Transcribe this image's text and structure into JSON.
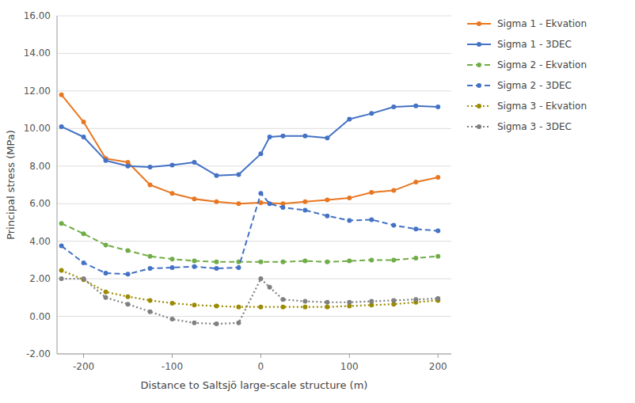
{
  "chart_data": {
    "type": "line",
    "xlabel": "Distance to Saltsjö large-scale structure (m)",
    "ylabel": "Principal stress (MPa)",
    "xlim": [
      -230,
      215
    ],
    "ylim": [
      -2.0,
      16.0
    ],
    "xticks": [
      -200,
      -100,
      0,
      100,
      200
    ],
    "yticks": [
      {
        "value": -2.0,
        "label": "-2.00"
      },
      {
        "value": 0.0,
        "label": "0.00"
      },
      {
        "value": 2.0,
        "label": "2.00"
      },
      {
        "value": 4.0,
        "label": "4.00"
      },
      {
        "value": 6.0,
        "label": "6.00"
      },
      {
        "value": 8.0,
        "label": "8.00"
      },
      {
        "value": 10.0,
        "label": "10.00"
      },
      {
        "value": 12.0,
        "label": "12.00"
      },
      {
        "value": 14.0,
        "label": "14.00"
      },
      {
        "value": 16.0,
        "label": "16.00"
      }
    ],
    "grid": true,
    "legend": "right",
    "series": [
      {
        "name": "Sigma 1 - Ekvation",
        "color": "#E87722",
        "line_style": "solid",
        "marker": "circle",
        "x": [
          -225,
          -200,
          -175,
          -150,
          -125,
          -100,
          -75,
          -50,
          -25,
          0,
          25,
          50,
          75,
          100,
          125,
          150,
          175,
          200
        ],
        "values": [
          11.8,
          10.35,
          8.4,
          8.2,
          7.0,
          6.55,
          6.25,
          6.1,
          6.0,
          6.05,
          6.0,
          6.1,
          6.2,
          6.3,
          6.6,
          6.7,
          7.15,
          7.4
        ]
      },
      {
        "name": "Sigma 1 - 3DEC",
        "color": "#4472C4",
        "line_style": "solid",
        "marker": "circle",
        "x": [
          -225,
          -200,
          -175,
          -150,
          -125,
          -100,
          -75,
          -50,
          -25,
          0,
          10,
          25,
          50,
          75,
          100,
          125,
          150,
          175,
          200
        ],
        "values": [
          10.1,
          9.55,
          8.3,
          8.0,
          7.95,
          8.05,
          8.2,
          7.5,
          7.55,
          8.65,
          9.55,
          9.6,
          9.6,
          9.5,
          10.5,
          10.8,
          11.15,
          11.2,
          11.15
        ]
      },
      {
        "name": "Sigma 2 - Ekvation",
        "color": "#70AD47",
        "line_style": "dashed",
        "marker": "circle",
        "x": [
          -225,
          -200,
          -175,
          -150,
          -125,
          -100,
          -75,
          -50,
          -25,
          0,
          25,
          50,
          75,
          100,
          125,
          150,
          175,
          200
        ],
        "values": [
          4.95,
          4.4,
          3.8,
          3.5,
          3.2,
          3.05,
          2.95,
          2.9,
          2.9,
          2.9,
          2.9,
          2.95,
          2.9,
          2.95,
          3.0,
          3.0,
          3.1,
          3.2
        ]
      },
      {
        "name": "Sigma 2 - 3DEC",
        "color": "#4472C4",
        "line_style": "dashed",
        "marker": "circle",
        "x": [
          -225,
          -200,
          -175,
          -150,
          -125,
          -100,
          -75,
          -50,
          -25,
          0,
          10,
          25,
          50,
          75,
          100,
          125,
          150,
          175,
          200
        ],
        "values": [
          3.75,
          2.85,
          2.3,
          2.25,
          2.55,
          2.6,
          2.65,
          2.55,
          2.6,
          6.55,
          6.0,
          5.8,
          5.65,
          5.35,
          5.1,
          5.15,
          4.85,
          4.65,
          4.55
        ]
      },
      {
        "name": "Sigma 3 - Ekvation",
        "color": "#9B8B00",
        "line_style": "dotted",
        "marker": "circle",
        "x": [
          -225,
          -200,
          -175,
          -150,
          -125,
          -100,
          -75,
          -50,
          -25,
          0,
          25,
          50,
          75,
          100,
          125,
          150,
          175,
          200
        ],
        "values": [
          2.45,
          1.95,
          1.3,
          1.05,
          0.85,
          0.7,
          0.6,
          0.55,
          0.5,
          0.5,
          0.5,
          0.5,
          0.5,
          0.55,
          0.6,
          0.65,
          0.75,
          0.85
        ]
      },
      {
        "name": "Sigma 3 - 3DEC",
        "color": "#808080",
        "line_style": "dotted",
        "marker": "circle",
        "x": [
          -225,
          -200,
          -175,
          -150,
          -125,
          -100,
          -75,
          -50,
          -25,
          0,
          10,
          25,
          50,
          75,
          100,
          125,
          150,
          175,
          200
        ],
        "values": [
          2.0,
          2.0,
          1.0,
          0.65,
          0.25,
          -0.15,
          -0.35,
          -0.4,
          -0.35,
          2.0,
          1.55,
          0.9,
          0.8,
          0.75,
          0.75,
          0.8,
          0.85,
          0.9,
          0.95
        ]
      }
    ]
  }
}
